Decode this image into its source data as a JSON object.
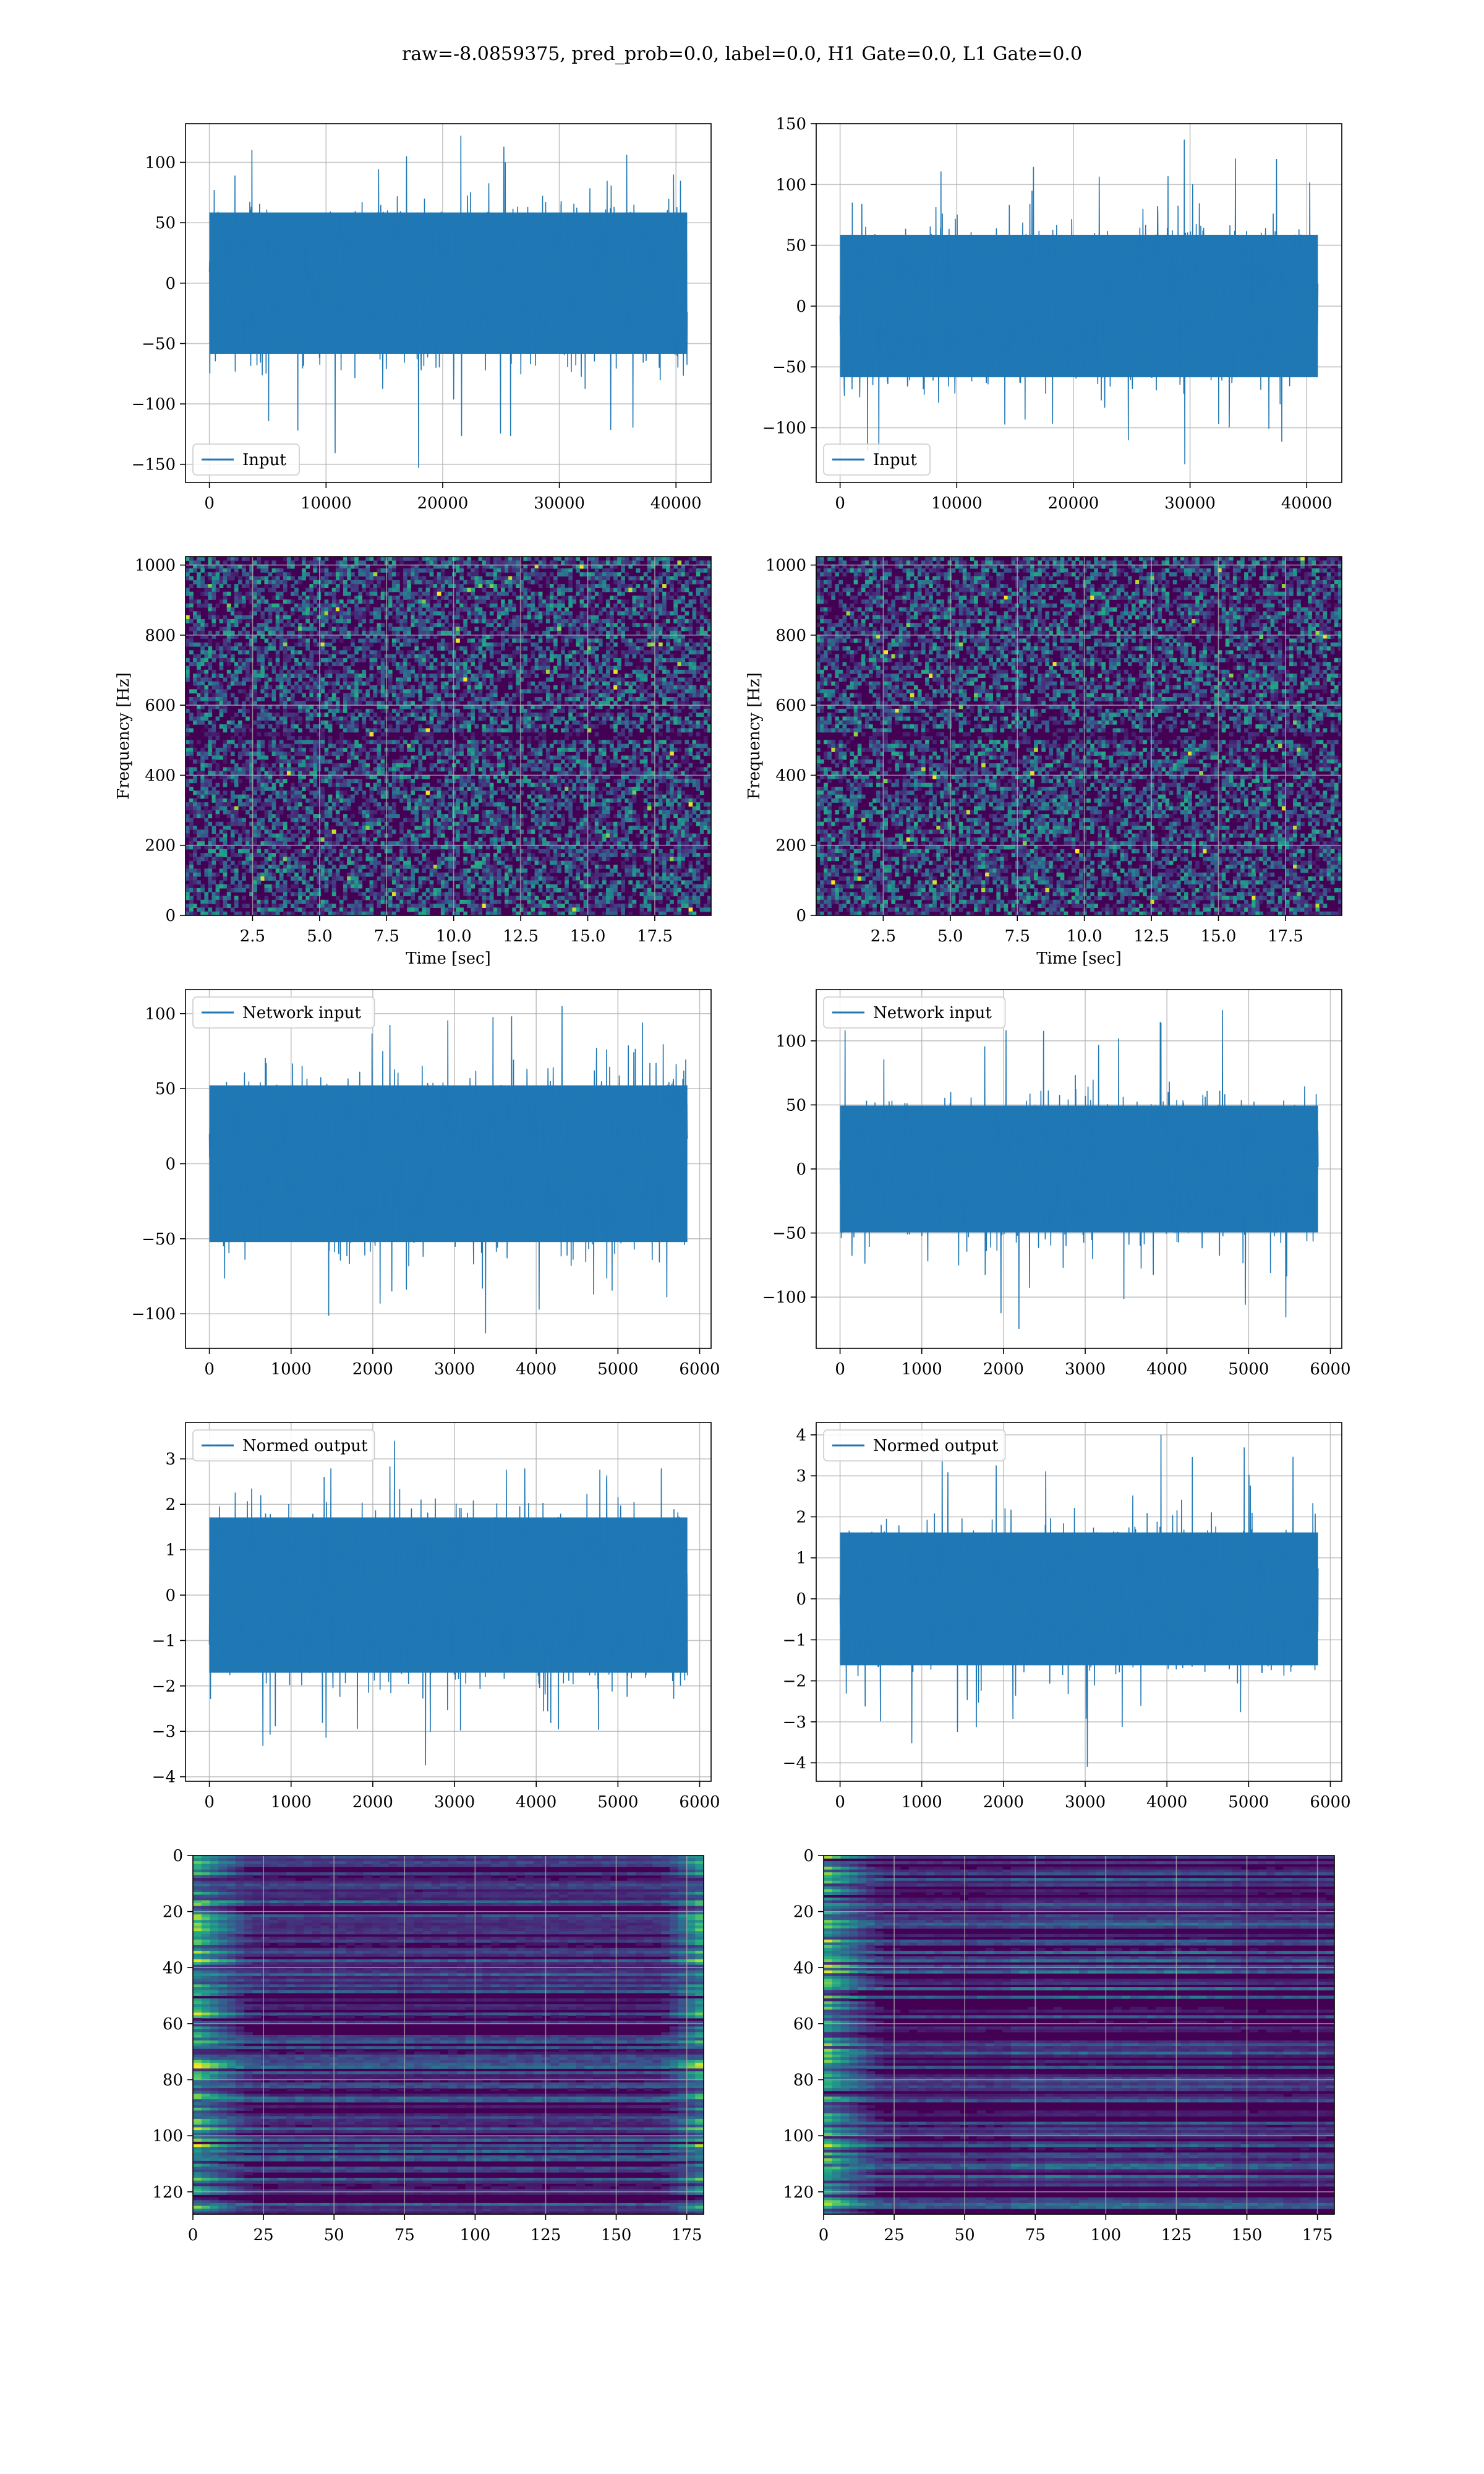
{
  "suptitle": "raw=-8.0859375, pred_prob=0.0, label=0.0, H1 Gate=0.0, L1 Gate=0.0",
  "colors": {
    "line": "#1f77b4",
    "grid": "#b0b0b0",
    "viridis_dark": "#440154",
    "viridis_mid": "#31688e",
    "viridis_teal": "#21918c",
    "viridis_green": "#5ec962",
    "viridis_yellow": "#fde725"
  },
  "chart_data": [
    {
      "id": "input-h1",
      "type": "line",
      "signal": "noise",
      "legend": "Input",
      "legend_loc": "lower-left",
      "x_range": [
        0,
        40960
      ],
      "xlim": [
        -2048,
        43008
      ],
      "y_typical": 65,
      "y_peak_max": 122,
      "y_peak_min": -153,
      "ylim": [
        -165,
        132
      ],
      "xticks": [
        0,
        10000,
        20000,
        30000,
        40000
      ],
      "yticks": [
        -150,
        -100,
        -50,
        0,
        50,
        100
      ],
      "xlabel": "",
      "ylabel": "",
      "grid": true
    },
    {
      "id": "input-l1",
      "type": "line",
      "signal": "noise",
      "legend": "Input",
      "legend_loc": "lower-left",
      "x_range": [
        0,
        40960
      ],
      "xlim": [
        -2048,
        43008
      ],
      "y_typical": 65,
      "y_peak_max": 137,
      "y_peak_min": -130,
      "ylim": [
        -145,
        150
      ],
      "xticks": [
        0,
        10000,
        20000,
        30000,
        40000
      ],
      "yticks": [
        -100,
        -50,
        0,
        50,
        100,
        150
      ],
      "xlabel": "",
      "ylabel": "",
      "grid": true
    },
    {
      "id": "spectrogram-h1",
      "type": "heatmap",
      "signal": "spectrogram",
      "xlim": [
        0,
        19.6
      ],
      "ylim": [
        0,
        1024
      ],
      "xticks": [
        2.5,
        5.0,
        7.5,
        10.0,
        12.5,
        15.0,
        17.5
      ],
      "yticks": [
        0,
        200,
        400,
        600,
        800,
        1000
      ],
      "xlabel": "Time [sec]",
      "ylabel": "Frequency [Hz]",
      "colormap": "viridis",
      "grid": true
    },
    {
      "id": "spectrogram-l1",
      "type": "heatmap",
      "signal": "spectrogram",
      "xlim": [
        0,
        19.6
      ],
      "ylim": [
        0,
        1024
      ],
      "xticks": [
        2.5,
        5.0,
        7.5,
        10.0,
        12.5,
        15.0,
        17.5
      ],
      "yticks": [
        0,
        200,
        400,
        600,
        800,
        1000
      ],
      "xlabel": "Time [sec]",
      "ylabel": "Frequency [Hz]",
      "colormap": "viridis",
      "grid": true
    },
    {
      "id": "network-input-h1",
      "type": "line",
      "signal": "noise",
      "legend": "Network input",
      "legend_loc": "upper-left",
      "x_range": [
        0,
        5850
      ],
      "xlim": [
        -292,
        6140
      ],
      "y_typical": 58,
      "y_peak_max": 105,
      "y_peak_min": -113,
      "ylim": [
        -123,
        116
      ],
      "xticks": [
        0,
        1000,
        2000,
        3000,
        4000,
        5000,
        6000
      ],
      "yticks": [
        -100,
        -50,
        0,
        50,
        100
      ],
      "xlabel": "",
      "ylabel": "",
      "grid": true
    },
    {
      "id": "network-input-l1",
      "type": "line",
      "signal": "noise",
      "legend": "Network input",
      "legend_loc": "upper-left",
      "x_range": [
        0,
        5850
      ],
      "xlim": [
        -292,
        6140
      ],
      "y_typical": 55,
      "y_peak_max": 124,
      "y_peak_min": -125,
      "ylim": [
        -140,
        140
      ],
      "xticks": [
        0,
        1000,
        2000,
        3000,
        4000,
        5000,
        6000
      ],
      "yticks": [
        -100,
        -50,
        0,
        50,
        100
      ],
      "xlabel": "",
      "ylabel": "",
      "grid": true
    },
    {
      "id": "normed-output-h1",
      "type": "line",
      "signal": "noise",
      "legend": "Normed output",
      "legend_loc": "upper-left",
      "x_range": [
        0,
        5850
      ],
      "xlim": [
        -292,
        6140
      ],
      "y_typical": 1.9,
      "y_peak_max": 3.4,
      "y_peak_min": -3.75,
      "ylim": [
        -4.1,
        3.8
      ],
      "xticks": [
        0,
        1000,
        2000,
        3000,
        4000,
        5000,
        6000
      ],
      "yticks": [
        -4,
        -3,
        -2,
        -1,
        0,
        1,
        2,
        3
      ],
      "xlabel": "",
      "ylabel": "",
      "grid": true
    },
    {
      "id": "normed-output-l1",
      "type": "line",
      "signal": "noise",
      "legend": "Normed output",
      "legend_loc": "upper-left",
      "x_range": [
        0,
        5850
      ],
      "xlim": [
        -292,
        6140
      ],
      "y_typical": 1.8,
      "y_peak_max": 4.0,
      "y_peak_min": -4.1,
      "ylim": [
        -4.45,
        4.3
      ],
      "xticks": [
        0,
        1000,
        2000,
        3000,
        4000,
        5000,
        6000
      ],
      "yticks": [
        -4,
        -3,
        -2,
        -1,
        0,
        1,
        2,
        3,
        4
      ],
      "xlabel": "",
      "ylabel": "",
      "grid": true
    },
    {
      "id": "feature-map-h1",
      "type": "heatmap",
      "signal": "featuremap",
      "xlim": [
        0,
        181
      ],
      "ylim": [
        128,
        0
      ],
      "rows": 128,
      "xticks": [
        0,
        25,
        50,
        75,
        100,
        125,
        150,
        175
      ],
      "yticks": [
        0,
        20,
        40,
        60,
        80,
        100,
        120
      ],
      "xlabel": "",
      "ylabel": "",
      "colormap": "viridis",
      "grid": true,
      "bright_edges": [
        "left",
        "right"
      ]
    },
    {
      "id": "feature-map-l1",
      "type": "heatmap",
      "signal": "featuremap",
      "xlim": [
        0,
        181
      ],
      "ylim": [
        128,
        0
      ],
      "rows": 128,
      "xticks": [
        0,
        25,
        50,
        75,
        100,
        125,
        150,
        175
      ],
      "yticks": [
        0,
        20,
        40,
        60,
        80,
        100,
        120
      ],
      "xlabel": "",
      "ylabel": "",
      "colormap": "viridis",
      "grid": true,
      "bright_edges": [
        "left"
      ]
    }
  ]
}
